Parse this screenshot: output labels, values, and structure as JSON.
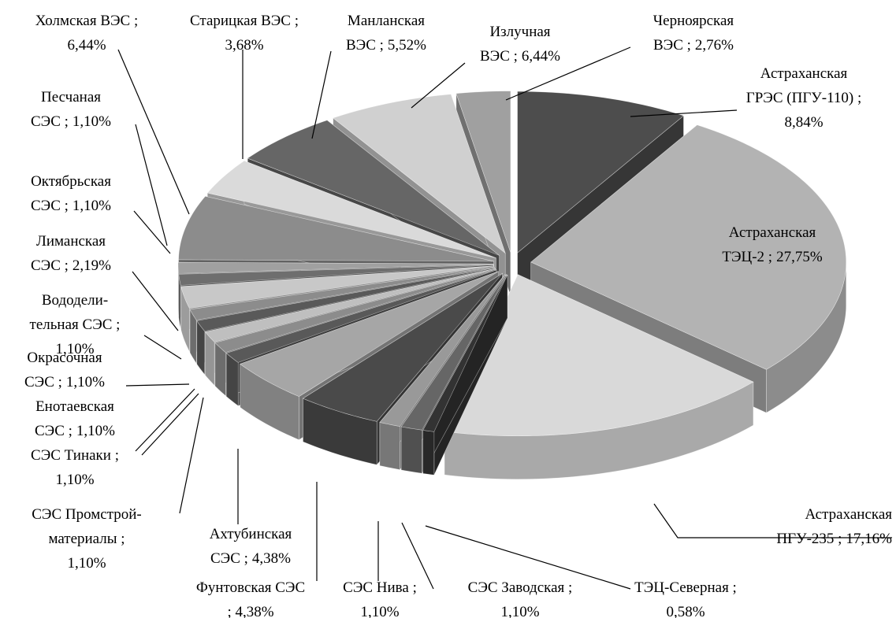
{
  "chart_data": {
    "type": "pie",
    "three_d": true,
    "exploded": true,
    "categories": [
      "Астраханская ГРЭС (ПГУ-110) ;",
      "Астраханская ТЭЦ-2 ;",
      "Астраханская ПГУ-235 ;",
      "ТЭЦ-Северная ;",
      "СЭС Заводская ;",
      "СЭС Нива ;",
      "Фунтовская СЭС",
      "Ахтубинская СЭС ;",
      "СЭС Промстрой-материалы ;",
      "СЭС Тинаки ;",
      "Енотаевская СЭС ;",
      "Окрасочная СЭС ;",
      "Вододели-тельная СЭС ;",
      "Лиманская СЭС ;",
      "Октябрьская СЭС ;",
      "Песчаная СЭС ;",
      "Холмская ВЭС ;",
      "Старицкая ВЭС ;",
      "Манланская ВЭС ;",
      "Излучная ВЭС ;",
      "Черноярская ВЭС ;"
    ],
    "values": [
      8.84,
      27.75,
      17.16,
      0.58,
      1.1,
      1.1,
      4.38,
      4.38,
      1.1,
      1.1,
      1.1,
      1.1,
      1.1,
      2.19,
      1.1,
      1.1,
      6.44,
      3.68,
      5.52,
      6.44,
      2.76
    ],
    "value_labels": [
      "8,84%",
      "27,75%",
      "17,16%",
      "0,58%",
      "1,10%",
      "1,10%",
      "; 4,38%",
      "4,38%",
      "1,10%",
      "1,10%",
      "1,10%",
      "1,10%",
      "1,10%",
      "2,19%",
      "1,10%",
      "1,10%",
      "6,44%",
      "3,68%",
      "5,52%",
      "6,44%",
      "2,76%"
    ],
    "colors": [
      "#4d4d4d",
      "#b3b3b3",
      "#d9d9d9",
      "#333333",
      "#666666",
      "#999999",
      "#4a4a4a",
      "#a6a6a6",
      "#595959",
      "#8c8c8c",
      "#bfbfbf",
      "#595959",
      "#8c8c8c",
      "#c8c8c8",
      "#6e6e6e",
      "#a0a0a0",
      "#8c8c8c",
      "#dadada",
      "#666666",
      "#d0d0d0",
      "#a0a0a0"
    ]
  }
}
